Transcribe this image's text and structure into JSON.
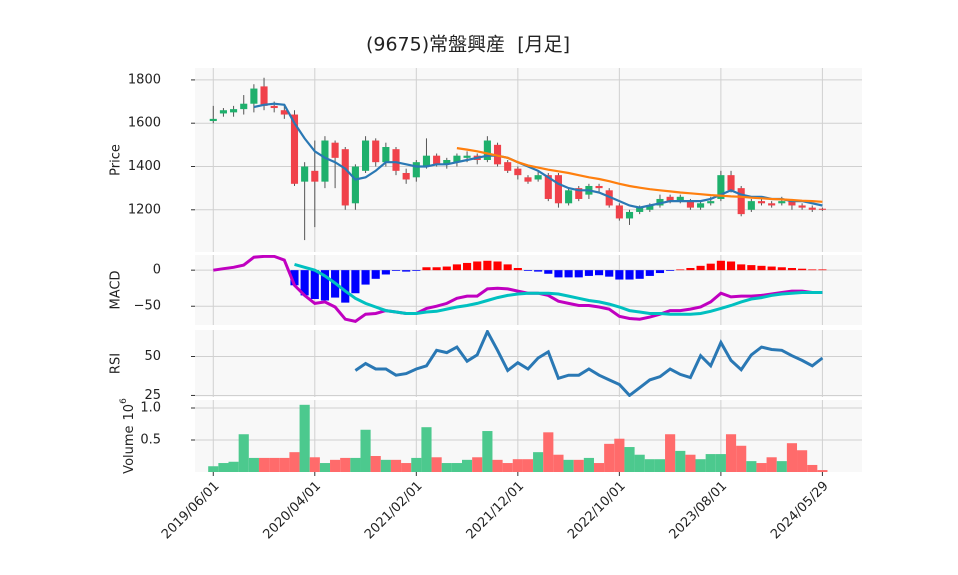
{
  "chart_data": [
    {
      "type": "candlestick",
      "title": "(9675)常盤興産  [月足]",
      "ylabel": "Price",
      "up_color": "#1eb06c",
      "down_color": "#f0414a",
      "open": [
        1610,
        1645,
        1650,
        1665,
        1690,
        1770,
        1680,
        1660,
        1640,
        1330,
        1380,
        1330,
        1510,
        1480,
        1230,
        1380,
        1520,
        1420,
        1480,
        1370,
        1350,
        1400,
        1450,
        1410,
        1420,
        1440,
        1450,
        1430,
        1500,
        1420,
        1390,
        1350,
        1340,
        1360,
        1360,
        1230,
        1300,
        1270,
        1310,
        1290,
        1220,
        1160,
        1190,
        1200,
        1220,
        1260,
        1240,
        1240,
        1210,
        1230,
        1250,
        1360,
        1300,
        1200,
        1240,
        1230,
        1230,
        1240,
        1220,
        1210,
        1205
      ],
      "high": [
        1680,
        1670,
        1680,
        1730,
        1780,
        1810,
        1700,
        1680,
        1660,
        1420,
        1520,
        1540,
        1520,
        1490,
        1410,
        1540,
        1530,
        1510,
        1490,
        1390,
        1430,
        1530,
        1460,
        1440,
        1460,
        1470,
        1460,
        1540,
        1510,
        1430,
        1400,
        1360,
        1380,
        1370,
        1370,
        1300,
        1310,
        1320,
        1320,
        1300,
        1230,
        1200,
        1220,
        1230,
        1270,
        1270,
        1270,
        1250,
        1240,
        1260,
        1380,
        1380,
        1310,
        1250,
        1250,
        1240,
        1260,
        1250,
        1230,
        1220,
        1210
      ],
      "low": [
        1600,
        1630,
        1630,
        1640,
        1650,
        1660,
        1650,
        1620,
        1310,
        1060,
        1120,
        1300,
        1300,
        1200,
        1200,
        1370,
        1400,
        1400,
        1360,
        1320,
        1330,
        1390,
        1400,
        1390,
        1400,
        1420,
        1410,
        1420,
        1400,
        1370,
        1340,
        1320,
        1330,
        1240,
        1210,
        1220,
        1240,
        1250,
        1280,
        1210,
        1150,
        1130,
        1180,
        1190,
        1210,
        1230,
        1230,
        1200,
        1200,
        1220,
        1240,
        1280,
        1170,
        1190,
        1220,
        1210,
        1220,
        1200,
        1200,
        1190,
        1195
      ],
      "close": [
        1620,
        1660,
        1665,
        1690,
        1760,
        1680,
        1670,
        1640,
        1320,
        1400,
        1330,
        1520,
        1440,
        1220,
        1400,
        1520,
        1420,
        1490,
        1380,
        1340,
        1420,
        1450,
        1410,
        1430,
        1450,
        1450,
        1430,
        1520,
        1410,
        1380,
        1360,
        1330,
        1360,
        1250,
        1230,
        1290,
        1250,
        1310,
        1300,
        1220,
        1160,
        1190,
        1210,
        1220,
        1250,
        1240,
        1260,
        1210,
        1230,
        1240,
        1360,
        1290,
        1180,
        1240,
        1230,
        1220,
        1240,
        1220,
        1210,
        1200,
        1200
      ],
      "lines": [
        {
          "color": "#2a78b4",
          "values": [
            null,
            null,
            null,
            null,
            1675,
            1685,
            1690,
            1685,
            1600,
            1530,
            1470,
            1440,
            1420,
            1390,
            1340,
            1350,
            1380,
            1420,
            1420,
            1410,
            1400,
            1400,
            1410,
            1410,
            1420,
            1430,
            1440,
            1450,
            1450,
            1440,
            1420,
            1400,
            1380,
            1350,
            1320,
            1300,
            1290,
            1290,
            1280,
            1260,
            1240,
            1220,
            1210,
            1220,
            1230,
            1240,
            1240,
            1240,
            1240,
            1250,
            1270,
            1290,
            1270,
            1260,
            1260,
            1250,
            1250,
            1240,
            1240,
            1230,
            1220
          ]
        },
        {
          "color": "#ff7f0e",
          "values": [
            null,
            null,
            null,
            null,
            null,
            null,
            null,
            null,
            null,
            null,
            null,
            null,
            null,
            null,
            null,
            null,
            null,
            null,
            null,
            null,
            null,
            null,
            null,
            null,
            1485,
            1478,
            1470,
            1460,
            1450,
            1440,
            1420,
            1405,
            1395,
            1385,
            1378,
            1370,
            1360,
            1350,
            1342,
            1332,
            1320,
            1310,
            1302,
            1295,
            1290,
            1285,
            1280,
            1276,
            1272,
            1268,
            1265,
            1262,
            1260,
            1256,
            1253,
            1250,
            1248,
            1245,
            1242,
            1240,
            1237
          ]
        }
      ],
      "ylim": [
        1005,
        1855
      ],
      "yticks": [
        1200,
        1400,
        1600,
        1800
      ],
      "grid": true
    },
    {
      "type": "macd",
      "ylabel": "MACD",
      "series": [
        {
          "color": "#c000c0",
          "values": [
            0,
            2,
            4,
            7,
            18,
            19,
            19,
            14,
            -21,
            -35,
            -46,
            -44,
            -51,
            -68,
            -71,
            -61,
            -60,
            -56,
            -58,
            -60,
            -60,
            -53,
            -50,
            -46,
            -39,
            -36,
            -36,
            -26,
            -25,
            -26,
            -29,
            -32,
            -32,
            -35,
            -43,
            -46,
            -49,
            -49,
            -51,
            -54,
            -64,
            -67,
            -68,
            -65,
            -61,
            -56,
            -56,
            -54,
            -51,
            -44,
            -32,
            -37,
            -36,
            -36,
            -35,
            -33,
            -31,
            -29,
            -29,
            -31,
            -31
          ]
        },
        {
          "color": "#00c0c0",
          "values": [
            null,
            null,
            null,
            null,
            null,
            null,
            null,
            null,
            8,
            4,
            0,
            -8,
            -18,
            -29,
            -39,
            -46,
            -51,
            -56,
            -58,
            -60,
            -60,
            -58,
            -57,
            -54,
            -51,
            -49,
            -46,
            -42,
            -38,
            -35,
            -33,
            -32,
            -32,
            -32,
            -33,
            -36,
            -39,
            -42,
            -44,
            -47,
            -51,
            -56,
            -58,
            -60,
            -60,
            -61,
            -61,
            -61,
            -60,
            -57,
            -53,
            -49,
            -44,
            -40,
            -38,
            -35,
            -33,
            -32,
            -31,
            -31,
            -31
          ]
        }
      ],
      "histogram": {
        "up_color": "#ff0000",
        "down_color": "#0000ff",
        "values": [
          null,
          null,
          null,
          null,
          null,
          null,
          null,
          null,
          -21,
          -35,
          -40,
          -42,
          -38,
          -45,
          -32,
          -20,
          -12,
          -6,
          -1,
          -2,
          -1,
          4,
          4,
          5,
          8,
          10,
          12,
          13,
          12,
          8,
          3,
          -1,
          -2,
          -5,
          -10,
          -10,
          -10,
          -8,
          -7,
          -9,
          -13,
          -13,
          -12,
          -8,
          -4,
          -1,
          1,
          3,
          6,
          9,
          13,
          12,
          8,
          7,
          6,
          5,
          4,
          3,
          2,
          1,
          1
        ]
      },
      "ylim": [
        -76,
        21
      ],
      "yticks": [
        {
          "value": -50,
          "label": "−50"
        },
        0
      ],
      "grid": true
    },
    {
      "type": "line",
      "ylabel": "RSI",
      "series": [
        {
          "color": "#2a78b4",
          "values": [
            null,
            null,
            null,
            null,
            null,
            null,
            null,
            null,
            null,
            null,
            null,
            null,
            null,
            null,
            41,
            45.5,
            42,
            42,
            38,
            39,
            42,
            44,
            54,
            52.5,
            56,
            47,
            51,
            66,
            54,
            41,
            46,
            42,
            49,
            53,
            36,
            38,
            38,
            42,
            38,
            35,
            32,
            25,
            30,
            35,
            37,
            42,
            38.5,
            36.5,
            50.5,
            44,
            59,
            47.5,
            41.5,
            51,
            56,
            54.5,
            54,
            50.5,
            47.5,
            44,
            49
          ]
        }
      ],
      "ylim": [
        24,
        67
      ],
      "yticks": [
        25,
        50
      ],
      "grid": true
    },
    {
      "type": "volume",
      "ylabel": "Volume",
      "offset_text": {
        "base": "10",
        "exponent": "6"
      },
      "up_color": "#4cc98e",
      "down_color": "#ff6b6b",
      "values": [
        0.09,
        0.14,
        0.16,
        0.59,
        0.22,
        0.22,
        0.22,
        0.22,
        0.31,
        1.05,
        0.23,
        0.14,
        0.19,
        0.22,
        0.22,
        0.66,
        0.25,
        0.19,
        0.19,
        0.14,
        0.22,
        0.7,
        0.23,
        0.14,
        0.14,
        0.19,
        0.23,
        0.64,
        0.19,
        0.14,
        0.2,
        0.2,
        0.31,
        0.62,
        0.27,
        0.19,
        0.19,
        0.22,
        0.14,
        0.44,
        0.52,
        0.39,
        0.27,
        0.2,
        0.2,
        0.59,
        0.33,
        0.27,
        0.2,
        0.28,
        0.28,
        0.59,
        0.41,
        0.17,
        0.14,
        0.23,
        0.17,
        0.45,
        0.34,
        0.11,
        0.03
      ],
      "ylim": [
        0,
        1.125
      ],
      "yticks": [
        0.5,
        {
          "value": 1,
          "label": "1.0"
        }
      ],
      "grid": true,
      "xlim": [
        -1.8,
        63.9
      ],
      "xticks": [
        {
          "value": 0,
          "label": "2019/06/01"
        },
        {
          "value": 10,
          "label": "2020/04/01"
        },
        {
          "value": 20,
          "label": "2021/02/01"
        },
        {
          "value": 30,
          "label": "2021/12/01"
        },
        {
          "value": 40,
          "label": "2022/10/01"
        },
        {
          "value": 50,
          "label": "2023/08/01"
        },
        {
          "value": 60,
          "label": "2024/05/29"
        }
      ]
    }
  ]
}
